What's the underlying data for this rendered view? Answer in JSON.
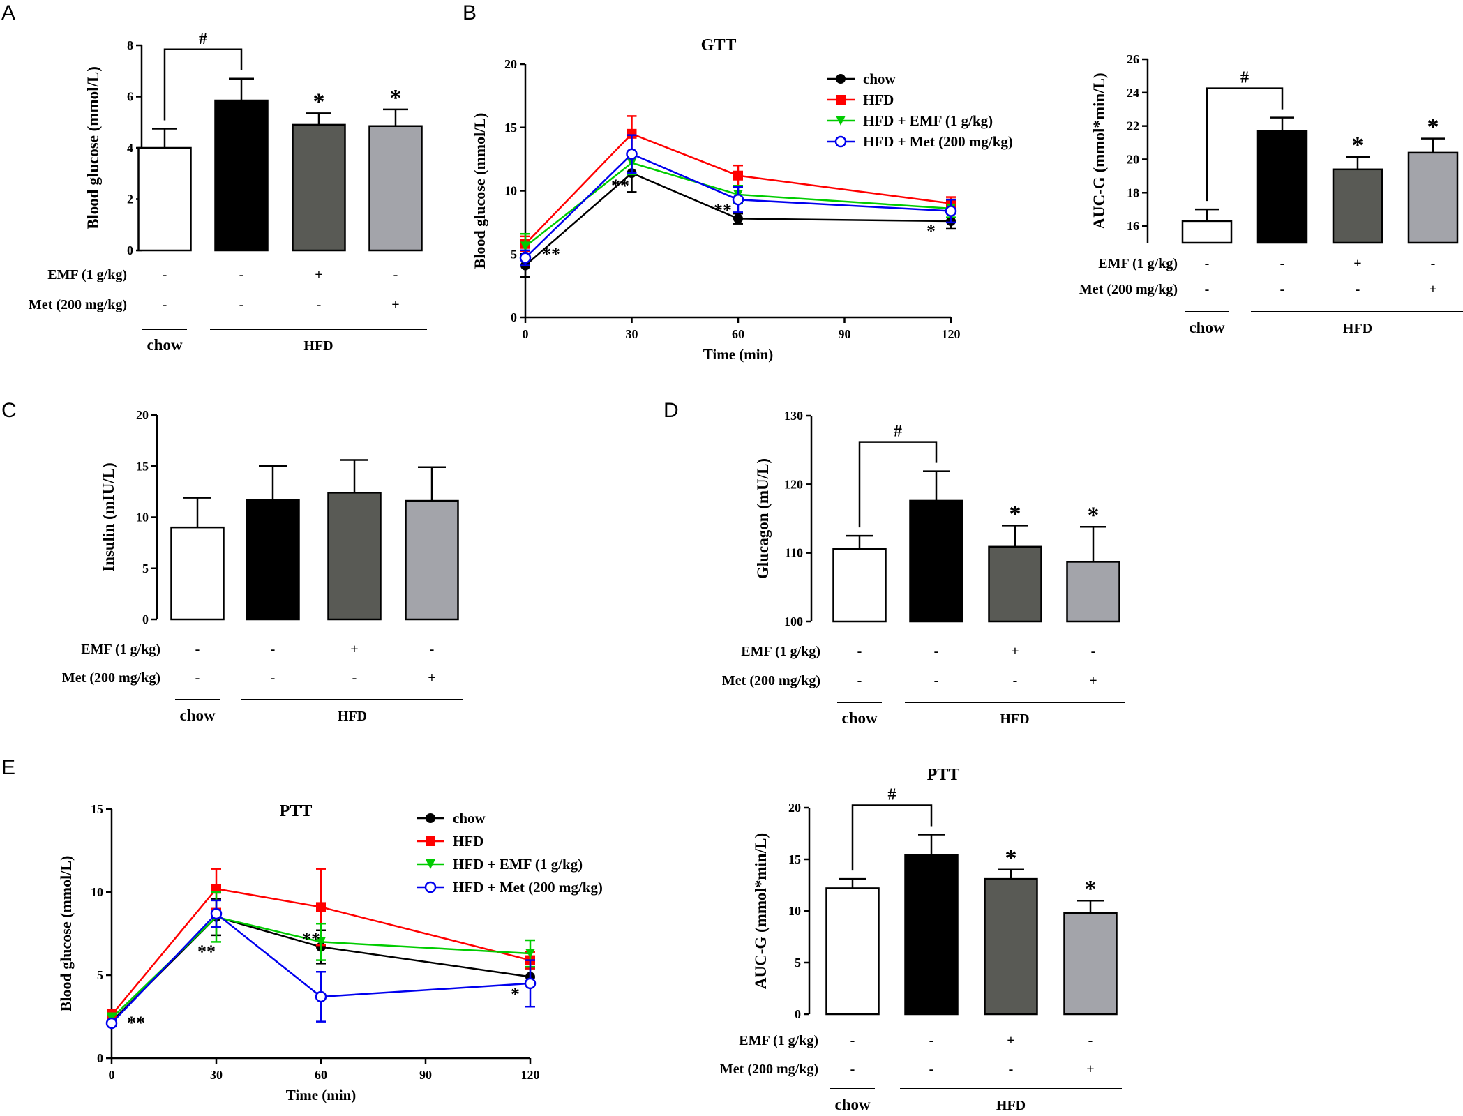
{
  "panel_labels": [
    "A",
    "B",
    "C",
    "D",
    "E"
  ],
  "legend_items": [
    "chow",
    "HFD",
    "HFD + EMF (1 g/kg)",
    "HFD + Met (200 mg/kg)"
  ],
  "colors": {
    "chow": "#000000",
    "HFD": "#ff0000",
    "HFD_EMF": "#00cc00",
    "HFD_Met": "#0000ee",
    "bar_chow": "#ffffff",
    "bar_HFD": "#000000",
    "bar_EMF": "#595a55",
    "bar_Met": "#a3a4aa"
  },
  "treatment_table": {
    "rows": [
      {
        "label": "EMF (1 g/kg)",
        "marks": [
          "-",
          "-",
          "+",
          "-"
        ]
      },
      {
        "label": "Met (200 mg/kg)",
        "marks": [
          "-",
          "-",
          "-",
          "+"
        ]
      }
    ],
    "groups": [
      "chow",
      "HFD"
    ]
  },
  "chart_data": [
    {
      "id": "A",
      "type": "bar",
      "title": "",
      "categories": [
        "chow",
        "HFD",
        "HFD + EMF (1 g/kg)",
        "HFD + Met (200 mg/kg)"
      ],
      "values": [
        4.0,
        5.85,
        4.9,
        4.85
      ],
      "errors": [
        0.75,
        0.85,
        0.45,
        0.65
      ],
      "ylabel": "Blood glucose (mmol/L)",
      "ylim": [
        0,
        8
      ],
      "yticks": [
        0,
        2,
        4,
        6,
        8
      ],
      "sig": [
        "",
        "",
        "*",
        "*"
      ],
      "bracket": {
        "from": 0,
        "to": 1,
        "label": "#"
      }
    },
    {
      "id": "B-GTT",
      "type": "line",
      "title": "GTT",
      "x": [
        0,
        30,
        60,
        120
      ],
      "xticks": [
        0,
        30,
        60,
        90,
        120
      ],
      "xlabel": "Time (min)",
      "ylabel": "Blood glucose (mmol/L)",
      "ylim": [
        0,
        20
      ],
      "yticks": [
        0,
        5,
        10,
        15,
        20
      ],
      "series": [
        {
          "name": "chow",
          "values": [
            4.1,
            11.4,
            7.8,
            7.6
          ],
          "errors": [
            0.9,
            1.5,
            0.4,
            0.6
          ],
          "marker": "circle"
        },
        {
          "name": "HFD",
          "values": [
            5.8,
            14.5,
            11.2,
            9.0
          ],
          "errors": [
            0.6,
            1.4,
            0.8,
            0.5
          ],
          "marker": "square"
        },
        {
          "name": "HFD + EMF (1 g/kg)",
          "values": [
            5.6,
            12.2,
            9.7,
            8.6
          ],
          "errors": [
            1.0,
            0.9,
            0.7,
            0.7
          ],
          "marker": "triangle-down"
        },
        {
          "name": "HFD + Met (200 mg/kg)",
          "values": [
            4.7,
            12.9,
            9.3,
            8.4
          ],
          "errors": [
            0.6,
            1.5,
            1.0,
            0.9
          ],
          "marker": "open-circle"
        }
      ],
      "annotations": [
        "**",
        "**",
        "**",
        "*"
      ]
    },
    {
      "id": "B-AUC",
      "type": "bar",
      "title": "",
      "categories": [
        "chow",
        "HFD",
        "HFD + EMF (1 g/kg)",
        "HFD + Met (200 mg/kg)"
      ],
      "values": [
        16.3,
        21.7,
        19.4,
        20.4
      ],
      "errors": [
        0.7,
        0.8,
        0.75,
        0.85
      ],
      "ylabel": "AUC-G (mmol*min/L)",
      "ylim": [
        15,
        26
      ],
      "yticks": [
        16,
        18,
        20,
        22,
        24,
        26
      ],
      "sig": [
        "",
        "",
        "*",
        "*"
      ],
      "bracket": {
        "from": 0,
        "to": 1,
        "label": "#"
      }
    },
    {
      "id": "C",
      "type": "bar",
      "title": "",
      "categories": [
        "chow",
        "HFD",
        "HFD + EMF (1 g/kg)",
        "HFD + Met (200 mg/kg)"
      ],
      "values": [
        9.0,
        11.7,
        12.4,
        11.6
      ],
      "errors": [
        2.9,
        3.3,
        3.2,
        3.3
      ],
      "ylabel": "Insulin (mIU/L)",
      "ylim": [
        0,
        20
      ],
      "yticks": [
        0,
        5,
        10,
        15,
        20
      ],
      "sig": [
        "",
        "",
        "",
        ""
      ],
      "bracket": null
    },
    {
      "id": "D",
      "type": "bar",
      "title": "",
      "categories": [
        "chow",
        "HFD",
        "HFD + EMF (1 g/kg)",
        "HFD + Met (200 mg/kg)"
      ],
      "values": [
        110.6,
        117.6,
        110.9,
        108.7
      ],
      "errors": [
        1.9,
        4.3,
        3.1,
        5.1
      ],
      "ylabel": "Glucagon (mU/L)",
      "ylim": [
        100,
        130
      ],
      "yticks": [
        100,
        110,
        120,
        130
      ],
      "sig": [
        "",
        "",
        "*",
        "*"
      ],
      "bracket": {
        "from": 0,
        "to": 1,
        "label": "#"
      }
    },
    {
      "id": "E-PTT",
      "type": "line",
      "title": "PTT",
      "x": [
        0,
        30,
        60,
        120
      ],
      "xticks": [
        0,
        30,
        60,
        90,
        120
      ],
      "xlabel": "Time (min)",
      "ylabel": "Blood glucose (mmol/L)",
      "ylim": [
        0,
        15
      ],
      "yticks": [
        0,
        5,
        10,
        15
      ],
      "series": [
        {
          "name": "chow",
          "values": [
            2.2,
            8.5,
            6.7,
            4.9
          ],
          "errors": [
            0.3,
            1.1,
            1.0,
            0.5
          ],
          "marker": "circle"
        },
        {
          "name": "HFD",
          "values": [
            2.6,
            10.2,
            9.1,
            5.9
          ],
          "errors": [
            0.3,
            1.2,
            2.3,
            0.5
          ],
          "marker": "square"
        },
        {
          "name": "HFD + EMF (1 g/kg)",
          "values": [
            2.4,
            8.5,
            7.0,
            6.3
          ],
          "errors": [
            0.3,
            1.5,
            1.1,
            0.8
          ],
          "marker": "triangle-down"
        },
        {
          "name": "HFD + Met (200 mg/kg)",
          "values": [
            2.1,
            8.7,
            3.7,
            4.5
          ],
          "errors": [
            0.2,
            0.8,
            1.5,
            1.4
          ],
          "marker": "open-circle"
        }
      ],
      "annotations": [
        "**",
        "**",
        "**",
        "*"
      ]
    },
    {
      "id": "E-AUC",
      "type": "bar",
      "title": "PTT",
      "categories": [
        "chow",
        "HFD",
        "HFD + EMF (1 g/kg)",
        "HFD + Met (200 mg/kg)"
      ],
      "values": [
        12.2,
        15.4,
        13.1,
        9.8
      ],
      "errors": [
        0.9,
        2.0,
        0.9,
        1.2
      ],
      "ylabel": "AUC-G (mmol*min/L)",
      "ylim": [
        0,
        20
      ],
      "yticks": [
        0,
        5,
        10,
        15,
        20
      ],
      "sig": [
        "",
        "",
        "*",
        "*"
      ],
      "bracket": {
        "from": 0,
        "to": 1,
        "label": "#"
      }
    }
  ]
}
